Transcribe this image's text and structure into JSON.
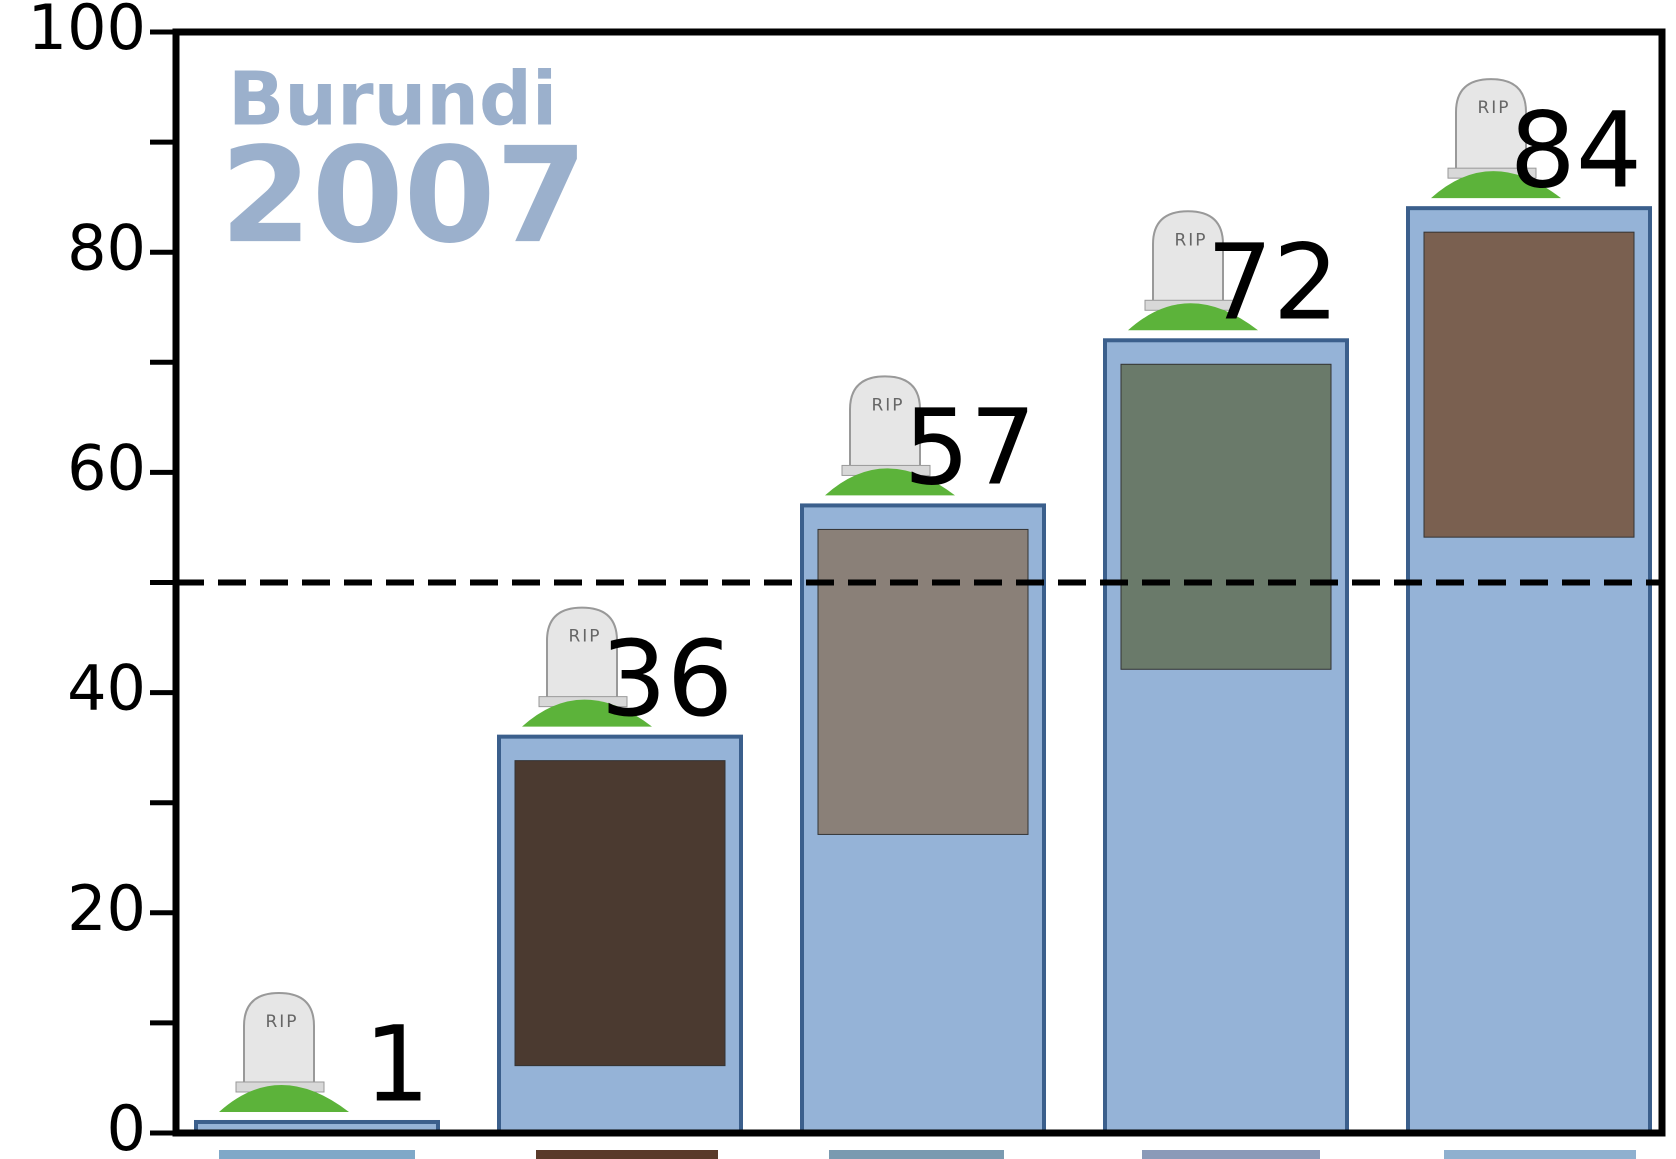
{
  "chart_data": {
    "type": "bar",
    "title": "Burundi",
    "subtitle": "2007",
    "values": [
      1,
      36,
      57,
      72,
      84
    ],
    "color": "#95b3d7",
    "ylim": [
      0,
      100
    ],
    "yticks": [
      0,
      20,
      40,
      60,
      80,
      100
    ],
    "yminor_ticks": [
      10,
      30,
      50,
      70,
      90
    ],
    "reference_line": 50,
    "tombstone_label": "RIP"
  }
}
